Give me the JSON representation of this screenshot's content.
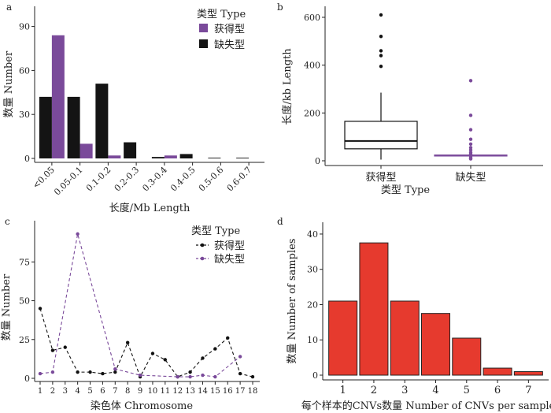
{
  "chart_data": [
    {
      "panel": "a",
      "type": "bar",
      "categories": [
        "<0.05",
        "0.05-0.1",
        "0.1-0.2",
        "0.2-0.3",
        "0.3-0.4",
        "0.4-0.5",
        "0.5-0.6",
        "0.6-0.7"
      ],
      "series": [
        {
          "name": "获得型",
          "color": "#7a4a9a",
          "values": [
            84,
            10,
            2,
            0,
            2,
            0,
            0,
            0
          ]
        },
        {
          "name": "缺失型",
          "color": "#141414",
          "values": [
            42,
            42,
            51,
            11,
            1,
            3,
            0.5,
            0.5
          ]
        }
      ],
      "legend_title": "类型 Type",
      "xlabel": "长度/Mb Length",
      "ylabel": "数量 Number",
      "ylim": [
        0,
        100
      ],
      "yticks": [
        0,
        30,
        60,
        90
      ],
      "legend": "top-right"
    },
    {
      "panel": "b",
      "type": "box",
      "categories": [
        "获得型",
        "缺失型"
      ],
      "boxes": [
        {
          "category": "获得型",
          "color": "#111111",
          "q1": 50,
          "median": 83,
          "q3": 165,
          "whisker_low": 5,
          "whisker_high": 285,
          "outliers": [
            610,
            520,
            460,
            440,
            395
          ]
        },
        {
          "category": "缺失型",
          "color": "#7a4a9a",
          "q1": 20,
          "median": 22,
          "q3": 24,
          "whisker_low": 18,
          "whisker_high": 25,
          "outliers": [
            335,
            190,
            130,
            90,
            70,
            55,
            45,
            35,
            28,
            15,
            10,
            8
          ]
        }
      ],
      "xlabel": "类型 Type",
      "ylabel": "长度/kb Length",
      "ylim": [
        -20,
        640
      ],
      "yticks": [
        0,
        200,
        400,
        600
      ]
    },
    {
      "panel": "c",
      "type": "line",
      "x": [
        1,
        2,
        3,
        4,
        5,
        6,
        7,
        8,
        9,
        10,
        11,
        12,
        13,
        14,
        15,
        16,
        17,
        18
      ],
      "series": [
        {
          "name": "获得型",
          "color": "#111111",
          "values": [
            45,
            18,
            20,
            4,
            4,
            3,
            4,
            23,
            1,
            16,
            12,
            1,
            4,
            13,
            19,
            26,
            3,
            1
          ]
        },
        {
          "name": "缺失型",
          "color": "#7a4a9a",
          "values": [
            3,
            4,
            null,
            93,
            null,
            null,
            6,
            null,
            2,
            null,
            null,
            1,
            1,
            2,
            1,
            null,
            14,
            null
          ]
        }
      ],
      "legend_title": "类型 Type",
      "xlabel": "染色体 Chromosome",
      "ylabel": "数量 Number",
      "ylim": [
        0,
        97
      ],
      "yticks": [
        0,
        25,
        50,
        75
      ],
      "legend": "top-right"
    },
    {
      "panel": "d",
      "type": "bar",
      "categories": [
        "1",
        "2",
        "3",
        "4",
        "5",
        "6",
        "7"
      ],
      "values": [
        21,
        37.5,
        21,
        17.5,
        10.5,
        2,
        1
      ],
      "color": "#e63a2e",
      "xlabel": "每个样本的CNVs数量 Number of CNVs per sample",
      "ylabel": "数量 Number of samples",
      "ylim": [
        0,
        42
      ],
      "yticks": [
        0,
        10,
        20,
        30,
        40
      ]
    }
  ]
}
